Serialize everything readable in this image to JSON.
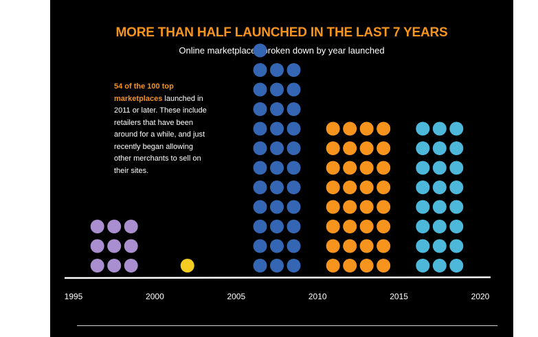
{
  "header": {
    "title": "MORE THAN HALF LAUNCHED IN THE LAST 7 YEARS",
    "subtitle": "Online marketplaces broken down by year launched"
  },
  "annotation": {
    "highlight": "54 of the 100 top marketplaces",
    "text": " launched in 2011 or later. These include retailers that have been around for a while, and just recently began allowing other merchants to sell on their sites."
  },
  "colors": {
    "background": "#000000",
    "accent": "#f7941d",
    "axis": "#ffffff"
  },
  "chart_data": {
    "type": "scatter",
    "style": "dot-plot",
    "title": "MORE THAN HALF LAUNCHED IN THE LAST 7 YEARS",
    "subtitle": "Online marketplaces broken down by year launched",
    "xlabel": "",
    "ylabel": "",
    "x_ticks": [
      1995,
      2000,
      2005,
      2010,
      2015,
      2020
    ],
    "xlim": [
      1995,
      2020
    ],
    "grid": false,
    "series": [
      {
        "period": "1995-2000",
        "count": 9,
        "columns": 3,
        "center": 1997.5,
        "color": "#a98fd0"
      },
      {
        "period": "2000-2005",
        "count": 1,
        "columns": 1,
        "center": 2002,
        "color": "#f5cc22"
      },
      {
        "period": "2005-2010",
        "count": 34,
        "columns": 3,
        "center": 2007.5,
        "color": "#3566b4"
      },
      {
        "period": "2010-2015",
        "count": 32,
        "columns": 4,
        "center": 2012.5,
        "color": "#f7941d"
      },
      {
        "period": "2015-2020",
        "count": 24,
        "columns": 3,
        "center": 2017.5,
        "color": "#4db8da"
      }
    ]
  }
}
